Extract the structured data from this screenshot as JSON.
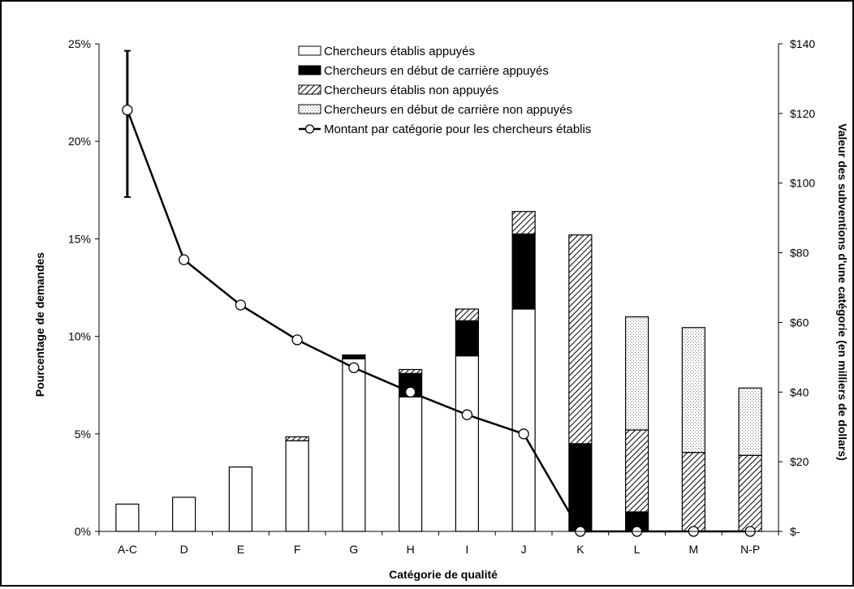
{
  "chart_data": {
    "type": "bar",
    "stacked": true,
    "xlabel": "Catégorie de qualité",
    "ylabel": "Pourcentage de demandes",
    "y2label": "Valeur des subventions d'une catégorie (en milliers de dollars)",
    "categories": [
      "A-C",
      "D",
      "E",
      "F",
      "G",
      "H",
      "I",
      "J",
      "K",
      "L",
      "M",
      "N-P"
    ],
    "ylim": [
      0,
      25
    ],
    "y2lim": [
      0,
      140
    ],
    "yticks": [
      "0%",
      "5%",
      "10%",
      "15%",
      "20%",
      "25%"
    ],
    "y2ticks": [
      "$-",
      "$20",
      "$40",
      "$60",
      "$80",
      "$100",
      "$120",
      "$140"
    ],
    "series": [
      {
        "name": "Chercheurs établis appuyés",
        "fill": "#ffffff",
        "pattern": "none",
        "values": [
          1.4,
          1.75,
          3.3,
          4.65,
          8.85,
          6.9,
          9.0,
          11.4,
          0,
          0,
          0,
          0
        ]
      },
      {
        "name": "Chercheurs en début de carrière appuyés",
        "fill": "#000000",
        "pattern": "none",
        "values": [
          0,
          0,
          0,
          0,
          0.2,
          1.2,
          1.8,
          3.85,
          4.5,
          1.0,
          0,
          0
        ]
      },
      {
        "name": "Chercheurs établis non appuyés",
        "fill": "#ffffff",
        "pattern": "diagonal",
        "values": [
          0,
          0,
          0,
          0.2,
          0,
          0.2,
          0.6,
          1.15,
          10.7,
          4.2,
          4.05,
          3.9
        ]
      },
      {
        "name": "Chercheurs en début de carrière non appuyés",
        "fill": "#e8e8e8",
        "pattern": "dots",
        "values": [
          0,
          0,
          0,
          0,
          0,
          0,
          0,
          0,
          0,
          5.8,
          6.4,
          3.45
        ]
      }
    ],
    "line": {
      "name": "Montant par catégorie pour les chercheurs établis",
      "axis": "right",
      "values": [
        121,
        78,
        65,
        55,
        47,
        40,
        33.5,
        28,
        0,
        0,
        0,
        0
      ],
      "error_bar": {
        "index": 0,
        "low": 96,
        "high": 138
      }
    },
    "legend": "top-center",
    "grid": false
  }
}
